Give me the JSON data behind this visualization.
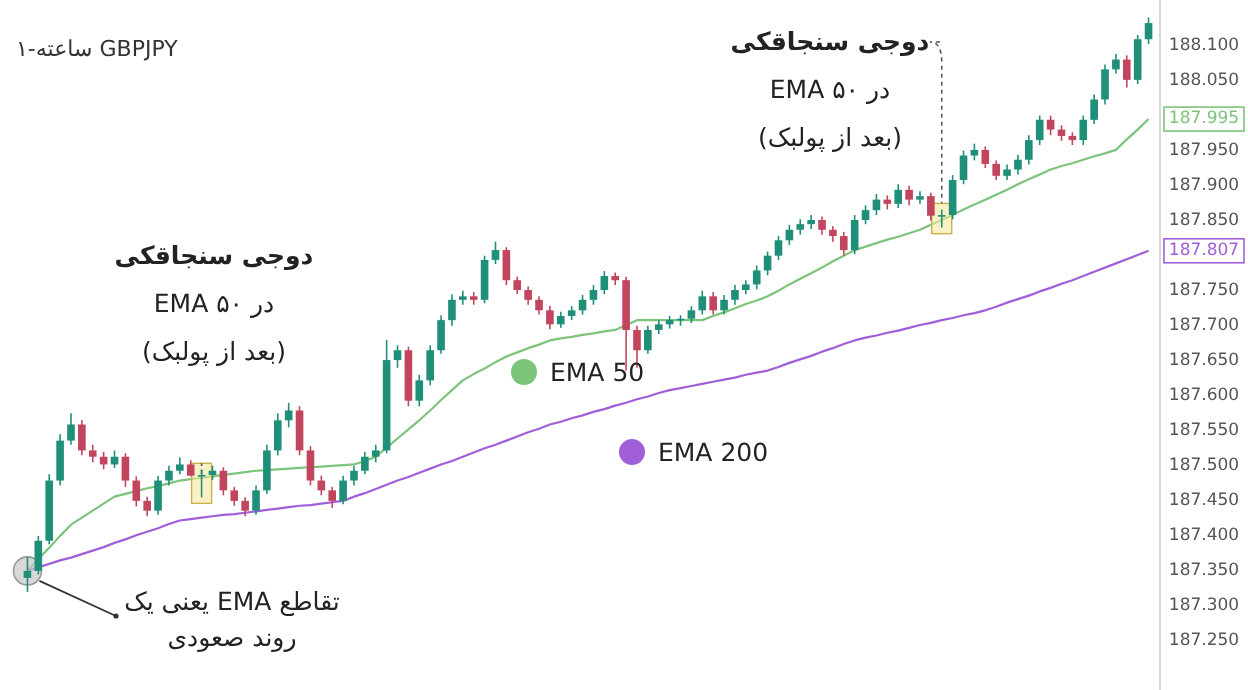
{
  "chart_data": {
    "type": "candlestick",
    "title": "ساعته-۱ GBPJPY",
    "categories": [
      null,
      null,
      null,
      null,
      null,
      null,
      null,
      null,
      null,
      null,
      null,
      null,
      null,
      null,
      null,
      null,
      null,
      null,
      null,
      null,
      null,
      null,
      null,
      null,
      null,
      null,
      null,
      null,
      null,
      null,
      null,
      null,
      null,
      null,
      null,
      null,
      null,
      null,
      null,
      null,
      null,
      null,
      null,
      null,
      null,
      null,
      null,
      null,
      null,
      null,
      null,
      null,
      null,
      null,
      null,
      null,
      null,
      null,
      null,
      null,
      null,
      null,
      null,
      null,
      null,
      null,
      null,
      null,
      null,
      null,
      null,
      null,
      null,
      null,
      null,
      null,
      null,
      null,
      null,
      null,
      null,
      null,
      null,
      null,
      null,
      null,
      null,
      null,
      null,
      null,
      null,
      null,
      null,
      null,
      null,
      null,
      null,
      null,
      null,
      null,
      null,
      null,
      null,
      null
    ],
    "ohlc": [
      [
        187.34,
        187.37,
        187.32,
        187.35
      ],
      [
        187.35,
        187.4,
        187.345,
        187.393
      ],
      [
        187.393,
        187.488,
        187.388,
        187.479
      ],
      [
        187.479,
        187.545,
        187.472,
        187.536
      ],
      [
        187.536,
        187.575,
        187.53,
        187.559
      ],
      [
        187.559,
        187.565,
        187.515,
        187.522
      ],
      [
        187.522,
        187.53,
        187.505,
        187.513
      ],
      [
        187.513,
        187.52,
        187.495,
        187.502
      ],
      [
        187.502,
        187.522,
        187.497,
        187.513
      ],
      [
        187.513,
        187.518,
        187.47,
        187.479
      ],
      [
        187.479,
        187.485,
        187.442,
        187.45
      ],
      [
        187.45,
        187.456,
        187.428,
        187.436
      ],
      [
        187.436,
        187.486,
        187.43,
        187.479
      ],
      [
        187.479,
        187.5,
        187.472,
        187.493
      ],
      [
        187.493,
        187.512,
        187.488,
        187.502
      ],
      [
        187.502,
        187.508,
        187.485,
        187.486
      ],
      [
        187.486,
        187.495,
        187.455,
        187.487
      ],
      [
        187.487,
        187.5,
        187.48,
        187.493
      ],
      [
        187.493,
        187.498,
        187.458,
        187.465
      ],
      [
        187.465,
        187.47,
        187.443,
        187.45
      ],
      [
        187.45,
        187.455,
        187.428,
        187.436
      ],
      [
        187.436,
        187.472,
        187.43,
        187.465
      ],
      [
        187.465,
        187.53,
        187.46,
        187.522
      ],
      [
        187.522,
        187.575,
        187.515,
        187.565
      ],
      [
        187.565,
        187.59,
        187.555,
        187.579
      ],
      [
        187.579,
        187.585,
        187.515,
        187.522
      ],
      [
        187.522,
        187.528,
        187.472,
        187.479
      ],
      [
        187.479,
        187.486,
        187.458,
        187.465
      ],
      [
        187.465,
        187.47,
        187.44,
        187.45
      ],
      [
        187.45,
        187.486,
        187.445,
        187.479
      ],
      [
        187.479,
        187.5,
        187.472,
        187.493
      ],
      [
        187.493,
        187.52,
        187.488,
        187.513
      ],
      [
        187.513,
        187.53,
        187.505,
        187.522
      ],
      [
        187.522,
        187.68,
        187.518,
        187.651
      ],
      [
        187.651,
        187.672,
        187.64,
        187.665
      ],
      [
        187.665,
        187.67,
        187.585,
        187.593
      ],
      [
        187.593,
        187.63,
        187.585,
        187.622
      ],
      [
        187.622,
        187.672,
        187.615,
        187.665
      ],
      [
        187.665,
        187.715,
        187.66,
        187.708
      ],
      [
        187.708,
        187.745,
        187.7,
        187.737
      ],
      [
        187.737,
        187.75,
        187.73,
        187.742
      ],
      [
        187.742,
        187.748,
        187.73,
        187.737
      ],
      [
        187.737,
        187.8,
        187.732,
        187.794
      ],
      [
        187.794,
        187.82,
        187.788,
        187.808
      ],
      [
        187.808,
        187.812,
        187.758,
        187.765
      ],
      [
        187.765,
        187.77,
        187.745,
        187.751
      ],
      [
        187.751,
        187.756,
        187.73,
        187.737
      ],
      [
        187.737,
        187.742,
        187.716,
        187.722
      ],
      [
        187.722,
        187.728,
        187.695,
        187.702
      ],
      [
        187.702,
        187.72,
        187.697,
        187.714
      ],
      [
        187.714,
        187.728,
        187.708,
        187.722
      ],
      [
        187.722,
        187.744,
        187.716,
        187.737
      ],
      [
        187.737,
        187.758,
        187.73,
        187.751
      ],
      [
        187.751,
        187.778,
        187.745,
        187.771
      ],
      [
        187.771,
        187.776,
        187.758,
        187.765
      ],
      [
        187.765,
        187.77,
        187.636,
        187.694
      ],
      [
        187.694,
        187.7,
        187.64,
        187.665
      ],
      [
        187.665,
        187.7,
        187.66,
        187.694
      ],
      [
        187.694,
        187.708,
        187.688,
        187.702
      ],
      [
        187.702,
        187.714,
        187.696,
        187.708
      ],
      [
        187.708,
        187.715,
        187.7,
        187.71
      ],
      [
        187.71,
        187.728,
        187.704,
        187.722
      ],
      [
        187.722,
        187.75,
        187.716,
        187.742
      ],
      [
        187.742,
        187.748,
        187.716,
        187.722
      ],
      [
        187.722,
        187.744,
        187.716,
        187.737
      ],
      [
        187.737,
        187.758,
        187.73,
        187.751
      ],
      [
        187.751,
        187.765,
        187.745,
        187.759
      ],
      [
        187.759,
        187.786,
        187.752,
        187.779
      ],
      [
        187.779,
        187.806,
        187.772,
        187.8
      ],
      [
        187.8,
        187.828,
        187.794,
        187.822
      ],
      [
        187.822,
        187.844,
        187.815,
        187.837
      ],
      [
        187.837,
        187.852,
        187.83,
        187.845
      ],
      [
        187.845,
        187.858,
        187.838,
        187.851
      ],
      [
        187.851,
        187.856,
        187.83,
        187.837
      ],
      [
        187.837,
        187.842,
        187.82,
        187.828
      ],
      [
        187.828,
        187.834,
        187.8,
        187.808
      ],
      [
        187.808,
        187.858,
        187.802,
        187.851
      ],
      [
        187.851,
        187.872,
        187.845,
        187.865
      ],
      [
        187.865,
        187.888,
        187.858,
        187.88
      ],
      [
        187.88,
        187.886,
        187.866,
        187.874
      ],
      [
        187.874,
        187.902,
        187.868,
        187.894
      ],
      [
        187.894,
        187.9,
        187.872,
        187.88
      ],
      [
        187.88,
        187.892,
        187.874,
        187.885
      ],
      [
        187.885,
        187.89,
        187.85,
        187.857
      ],
      [
        187.857,
        187.866,
        187.84,
        187.858
      ],
      [
        187.858,
        187.915,
        187.852,
        187.908
      ],
      [
        187.908,
        187.95,
        187.902,
        187.943
      ],
      [
        187.943,
        187.96,
        187.936,
        187.951
      ],
      [
        187.951,
        187.956,
        187.925,
        187.931
      ],
      [
        187.931,
        187.936,
        187.908,
        187.914
      ],
      [
        187.914,
        187.93,
        187.908,
        187.923
      ],
      [
        187.923,
        187.944,
        187.916,
        187.937
      ],
      [
        187.937,
        187.972,
        187.93,
        187.965
      ],
      [
        187.965,
        188.0,
        187.958,
        187.994
      ],
      [
        187.994,
        188.0,
        187.972,
        187.98
      ],
      [
        187.98,
        187.986,
        187.964,
        187.971
      ],
      [
        187.971,
        187.976,
        187.958,
        187.965
      ],
      [
        187.965,
        188.0,
        187.958,
        187.994
      ],
      [
        187.994,
        188.03,
        187.988,
        188.023
      ],
      [
        188.023,
        188.073,
        188.016,
        188.066
      ],
      [
        188.066,
        188.088,
        188.06,
        188.08
      ],
      [
        188.08,
        188.086,
        188.04,
        188.051
      ],
      [
        188.051,
        188.115,
        188.045,
        188.109
      ],
      [
        188.109,
        188.14,
        188.102,
        188.132
      ]
    ],
    "colors": [
      "#1f8f7a",
      "#1f8f7a",
      "#1f8f7a",
      "#1f8f7a",
      "#1f8f7a",
      "#c2455e",
      "#c2455e",
      "#c2455e",
      "#1f8f7a",
      "#c2455e",
      "#c2455e",
      "#c2455e",
      "#1f8f7a",
      "#1f8f7a",
      "#1f8f7a",
      "#c2455e",
      "#1f8f7a",
      "#1f8f7a",
      "#c2455e",
      "#c2455e",
      "#c2455e",
      "#1f8f7a",
      "#1f8f7a",
      "#1f8f7a",
      "#1f8f7a",
      "#c2455e",
      "#c2455e",
      "#c2455e",
      "#c2455e",
      "#1f8f7a",
      "#1f8f7a",
      "#1f8f7a",
      "#1f8f7a",
      "#1f8f7a",
      "#1f8f7a",
      "#c2455e",
      "#1f8f7a",
      "#1f8f7a",
      "#1f8f7a",
      "#1f8f7a",
      "#1f8f7a",
      "#c2455e",
      "#1f8f7a",
      "#1f8f7a",
      "#c2455e",
      "#c2455e",
      "#c2455e",
      "#c2455e",
      "#c2455e",
      "#1f8f7a",
      "#1f8f7a",
      "#1f8f7a",
      "#1f8f7a",
      "#1f8f7a",
      "#c2455e",
      "#c2455e",
      "#c2455e",
      "#1f8f7a",
      "#1f8f7a",
      "#1f8f7a",
      "#1f8f7a",
      "#1f8f7a",
      "#1f8f7a",
      "#c2455e",
      "#1f8f7a",
      "#1f8f7a",
      "#1f8f7a",
      "#1f8f7a",
      "#1f8f7a",
      "#1f8f7a",
      "#1f8f7a",
      "#1f8f7a",
      "#1f8f7a",
      "#c2455e",
      "#c2455e",
      "#c2455e",
      "#1f8f7a",
      "#1f8f7a",
      "#1f8f7a",
      "#c2455e",
      "#1f8f7a",
      "#c2455e",
      "#1f8f7a",
      "#c2455e",
      "#1f8f7a",
      "#1f8f7a",
      "#1f8f7a",
      "#1f8f7a",
      "#c2455e",
      "#c2455e",
      "#1f8f7a",
      "#1f8f7a",
      "#1f8f7a",
      "#1f8f7a",
      "#c2455e",
      "#c2455e",
      "#c2455e",
      "#1f8f7a",
      "#1f8f7a",
      "#1f8f7a",
      "#1f8f7a",
      "#c2455e",
      "#1f8f7a",
      "#1f8f7a"
    ],
    "series": [
      {
        "name": "EMA 50",
        "type": "line",
        "color": "#7cc47a",
        "values": [
          187.35,
          187.367,
          187.383,
          187.4,
          187.416,
          187.426,
          187.436,
          187.446,
          187.456,
          187.46,
          187.464,
          187.468,
          187.471,
          187.475,
          187.479,
          187.481,
          187.483,
          187.485,
          187.487,
          187.489,
          187.491,
          187.493,
          187.494,
          187.495,
          187.496,
          187.497,
          187.498,
          187.499,
          187.5,
          187.501,
          187.502,
          187.507,
          187.513,
          187.526,
          187.539,
          187.552,
          187.565,
          187.579,
          187.594,
          187.608,
          187.622,
          187.631,
          187.639,
          187.648,
          187.656,
          187.662,
          187.668,
          187.673,
          187.679,
          187.682,
          187.684,
          187.687,
          187.689,
          187.692,
          187.694,
          187.701,
          187.708,
          187.708,
          187.708,
          187.708,
          187.708,
          187.708,
          187.708,
          187.714,
          187.719,
          187.725,
          187.731,
          187.736,
          187.742,
          187.75,
          187.759,
          187.767,
          187.775,
          187.783,
          187.792,
          187.8,
          187.808,
          187.813,
          187.818,
          187.823,
          187.827,
          187.832,
          187.837,
          187.844,
          187.851,
          187.858,
          187.866,
          187.873,
          187.88,
          187.887,
          187.894,
          187.902,
          187.909,
          187.916,
          187.923,
          187.928,
          187.932,
          187.937,
          187.942,
          187.946,
          187.951,
          187.966,
          187.98,
          187.995
        ],
        "value_labels": [
          null,
          null,
          null,
          null,
          null,
          null,
          null,
          null,
          null,
          null,
          null,
          null,
          null,
          null,
          null,
          null,
          null,
          null,
          null,
          null,
          null,
          null,
          null,
          null,
          null,
          null,
          null,
          null,
          null,
          null,
          null,
          null,
          null,
          null,
          null,
          null,
          null,
          null,
          null,
          null,
          null,
          null,
          null,
          null,
          null,
          null,
          null,
          null,
          null,
          null,
          null,
          null,
          null,
          null,
          null,
          null,
          null,
          null,
          null,
          null,
          null,
          null,
          null,
          null,
          null,
          null,
          null,
          null,
          null,
          null,
          null,
          null,
          null,
          null,
          null,
          null,
          null,
          null,
          null,
          null,
          null,
          null,
          null,
          null,
          null,
          null,
          null,
          null,
          null,
          null,
          null,
          null,
          null,
          null,
          null,
          null,
          null,
          null,
          null,
          null,
          null,
          null,
          null,
          "187.995"
        ]
      },
      {
        "name": "EMA 200",
        "type": "line",
        "color": "#a05fd9",
        "values": [
          187.35,
          187.355,
          187.36,
          187.365,
          187.369,
          187.374,
          187.379,
          187.384,
          187.39,
          187.395,
          187.401,
          187.406,
          187.411,
          187.417,
          187.422,
          187.424,
          187.426,
          187.428,
          187.43,
          187.431,
          187.433,
          187.435,
          187.437,
          187.439,
          187.441,
          187.443,
          187.444,
          187.446,
          187.448,
          187.45,
          187.456,
          187.461,
          187.467,
          187.473,
          187.479,
          187.484,
          187.49,
          187.496,
          187.502,
          187.507,
          187.513,
          187.519,
          187.525,
          187.53,
          187.536,
          187.542,
          187.548,
          187.553,
          187.559,
          187.563,
          187.568,
          187.572,
          187.577,
          187.581,
          187.586,
          187.59,
          187.595,
          187.599,
          187.604,
          187.608,
          187.611,
          187.614,
          187.617,
          187.62,
          187.623,
          187.626,
          187.63,
          187.633,
          187.636,
          187.641,
          187.647,
          187.652,
          187.657,
          187.663,
          187.668,
          187.674,
          187.679,
          187.683,
          187.686,
          187.69,
          187.693,
          187.697,
          187.701,
          187.704,
          187.708,
          187.711,
          187.715,
          187.718,
          187.722,
          187.727,
          187.733,
          187.738,
          187.743,
          187.749,
          187.754,
          187.76,
          187.765,
          187.771,
          187.777,
          187.783,
          187.789,
          187.795,
          187.801,
          187.807
        ],
        "value_labels": [
          null,
          null,
          null,
          null,
          null,
          null,
          null,
          null,
          null,
          null,
          null,
          null,
          null,
          null,
          null,
          null,
          null,
          null,
          null,
          null,
          null,
          null,
          null,
          null,
          null,
          null,
          null,
          null,
          null,
          null,
          null,
          null,
          null,
          null,
          null,
          null,
          null,
          null,
          null,
          null,
          null,
          null,
          null,
          null,
          null,
          null,
          null,
          null,
          null,
          null,
          null,
          null,
          null,
          null,
          null,
          null,
          null,
          null,
          null,
          null,
          null,
          null,
          null,
          null,
          null,
          null,
          null,
          null,
          null,
          null,
          null,
          null,
          null,
          null,
          null,
          null,
          null,
          null,
          null,
          null,
          null,
          null,
          null,
          null,
          null,
          null,
          null,
          null,
          null,
          null,
          null,
          null,
          null,
          null,
          null,
          null,
          null,
          null,
          null,
          null,
          null,
          null,
          null,
          "187.807"
        ]
      }
    ],
    "ylim": [
      187.18,
      188.165
    ],
    "yticks": [
      {
        "value": 187.25,
        "label": "187.250"
      },
      {
        "value": 187.3,
        "label": "187.300"
      },
      {
        "value": 187.35,
        "label": "187.350"
      },
      {
        "value": 187.4,
        "label": "187.400"
      },
      {
        "value": 187.45,
        "label": "187.450"
      },
      {
        "value": 187.5,
        "label": "187.500"
      },
      {
        "value": 187.55,
        "label": "187.550"
      },
      {
        "value": 187.6,
        "label": "187.600"
      },
      {
        "value": 187.65,
        "label": "187.650"
      },
      {
        "value": 187.7,
        "label": "187.700"
      },
      {
        "value": 187.75,
        "label": "187.750"
      },
      {
        "value": 187.85,
        "label": "187.850"
      },
      {
        "value": 187.9,
        "label": "187.900"
      },
      {
        "value": 187.95,
        "label": "187.950"
      },
      {
        "value": 188.05,
        "label": "188.050"
      },
      {
        "value": 188.1,
        "label": "188.100"
      }
    ],
    "tick_labels": "y",
    "legend": "center",
    "annotations": [
      "دوجی سنجاقکی\nدر EMA ۵۰\n(بعد از پولبک)",
      "دوجی سنجاقکی\nدر EMA ۵۰\n(بعد از پولبک)",
      "تقاطع EMA یعنی یک\nروند صعودی"
    ]
  }
}
